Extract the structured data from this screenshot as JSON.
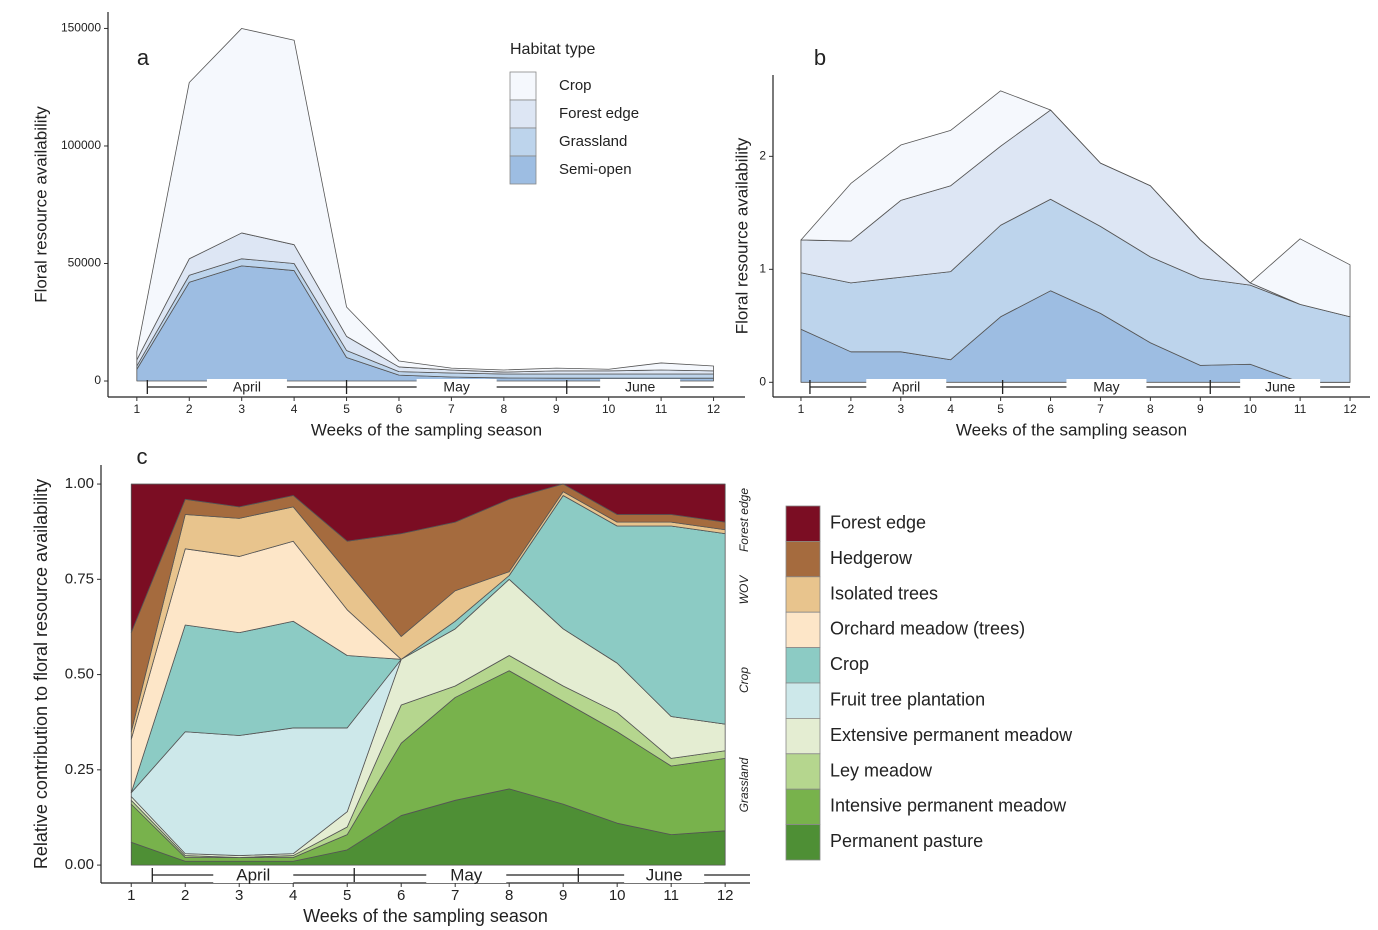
{
  "chart_data": [
    {
      "type": "area",
      "panel_label": "a",
      "x_label": "Weeks of the sampling season",
      "y_label": "Floral resource availability",
      "legend_title": "Habitat type",
      "x": [
        1,
        2,
        3,
        4,
        5,
        6,
        7,
        8,
        9,
        10,
        11,
        12
      ],
      "xlim": [
        0.45,
        12.6
      ],
      "xticks": [
        1,
        2,
        3,
        4,
        5,
        6,
        7,
        8,
        9,
        10,
        11,
        12
      ],
      "ylim": [
        -6800,
        157000
      ],
      "yticks": [
        0,
        50000,
        100000,
        150000
      ],
      "series": [
        {
          "name": "Crop",
          "color": "#f5f8fd",
          "values": [
            3400,
            75000,
            87000,
            87000,
            12500,
            2500,
            800,
            900,
            1200,
            700,
            3000,
            2100
          ]
        },
        {
          "name": "Forest edge",
          "color": "#dde6f4",
          "values": [
            2600,
            7000,
            11000,
            8000,
            6000,
            2000,
            1300,
            800,
            1300,
            1300,
            1700,
            1300
          ]
        },
        {
          "name": "Grassland",
          "color": "#bdd4ec",
          "values": [
            1400,
            3000,
            3000,
            3000,
            3000,
            1500,
            1700,
            1700,
            1800,
            1800,
            1800,
            1800
          ]
        },
        {
          "name": "Semi-open",
          "color": "#9dbde2",
          "values": [
            5000,
            42000,
            49000,
            47000,
            10000,
            2500,
            1700,
            1300,
            1200,
            1200,
            1200,
            1200
          ]
        }
      ],
      "months": [
        {
          "label": "April",
          "start": 1.2,
          "end": 5.0
        },
        {
          "label": "May",
          "start": 5.0,
          "end": 9.2
        },
        {
          "label": "June",
          "start": 9.2,
          "end": 12
        }
      ]
    },
    {
      "type": "area",
      "panel_label": "b",
      "x_label": "Weeks of the sampling season",
      "y_label": "Floral resource availability",
      "x": [
        1,
        2,
        3,
        4,
        5,
        6,
        7,
        8,
        9,
        10,
        11,
        12
      ],
      "xlim": [
        0.44,
        12.4
      ],
      "xticks": [
        1,
        2,
        3,
        4,
        5,
        6,
        7,
        8,
        9,
        10,
        11,
        12
      ],
      "ylim": [
        -0.13,
        2.72
      ],
      "yticks": [
        0,
        1,
        2
      ],
      "series": [
        {
          "name": "Crop",
          "color": "#f5f8fd",
          "values": [
            0,
            0.51,
            0.49,
            0.49,
            0.49,
            0,
            0,
            0,
            0,
            0,
            0.58,
            0.46
          ]
        },
        {
          "name": "Forest edge",
          "color": "#dde6f4",
          "values": [
            0.29,
            0.37,
            0.68,
            0.76,
            0.7,
            0.79,
            0.56,
            0.63,
            0.34,
            0.02,
            0,
            0
          ]
        },
        {
          "name": "Grassland",
          "color": "#bdd4ec",
          "values": [
            0.5,
            0.61,
            0.66,
            0.78,
            0.81,
            0.81,
            0.77,
            0.76,
            0.77,
            0.7,
            0.69,
            0.58
          ]
        },
        {
          "name": "Semi-open",
          "color": "#9dbde2",
          "values": [
            0.47,
            0.27,
            0.27,
            0.2,
            0.58,
            0.81,
            0.61,
            0.35,
            0.15,
            0.16,
            0,
            0
          ]
        }
      ],
      "months": [
        {
          "label": "April",
          "start": 1.18,
          "end": 5.04
        },
        {
          "label": "May",
          "start": 5.04,
          "end": 9.2
        },
        {
          "label": "June",
          "start": 9.2,
          "end": 12
        }
      ]
    },
    {
      "type": "area",
      "panel_label": "c",
      "x_label": "Weeks of the sampling season",
      "y_label": "Relative contribution to floral resource  availability",
      "x": [
        1,
        2,
        3,
        4,
        5,
        6,
        7,
        8,
        9,
        10,
        11,
        12
      ],
      "xlim": [
        0.44,
        12.46
      ],
      "xticks": [
        1,
        2,
        3,
        4,
        5,
        6,
        7,
        8,
        9,
        10,
        11,
        12
      ],
      "ylim": [
        -0.047,
        1.05
      ],
      "yticks": [
        {
          "value": 0,
          "label": "0.00"
        },
        {
          "value": 0.25,
          "label": "0.25"
        },
        {
          "value": 0.5,
          "label": "0.50"
        },
        {
          "value": 0.75,
          "label": "0.75"
        },
        {
          "value": 1,
          "label": "1.00"
        }
      ],
      "series": [
        {
          "name": "Forest edge",
          "color": "#7b0d23",
          "values": [
            0.39,
            0.04,
            0.06,
            0.03,
            0.15,
            0.13,
            0.1,
            0.04,
            0,
            0.08,
            0.08,
            0.1
          ]
        },
        {
          "name": "Hedgerow",
          "color": "#a56b3e",
          "values": [
            0.26,
            0.04,
            0.03,
            0.03,
            0.08,
            0.27,
            0.18,
            0.19,
            0.02,
            0.02,
            0.02,
            0.02
          ]
        },
        {
          "name": "Isolated trees",
          "color": "#e8c48d",
          "values": [
            0.02,
            0.09,
            0.1,
            0.09,
            0.1,
            0.06,
            0.08,
            0.01,
            0.01,
            0.01,
            0.01,
            0.01
          ]
        },
        {
          "name": "Orchard meadow (trees)",
          "color": "#fde6c8",
          "values": [
            0.14,
            0.2,
            0.2,
            0.21,
            0.12,
            0,
            0,
            0,
            0,
            0,
            0,
            0
          ]
        },
        {
          "name": "Crop",
          "color": "#8ccbc4",
          "values": [
            0,
            0.28,
            0.27,
            0.28,
            0.19,
            0,
            0.02,
            0.01,
            0.35,
            0.36,
            0.5,
            0.5
          ]
        },
        {
          "name": "Fruit tree plantation",
          "color": "#cde8ea",
          "values": [
            0.01,
            0.32,
            0.315,
            0.33,
            0.22,
            0,
            0,
            0,
            0,
            0,
            0,
            0
          ]
        },
        {
          "name": "Extensive permanent meadow",
          "color": "#e4edd2",
          "values": [
            0.01,
            0.005,
            0.005,
            0.005,
            0.04,
            0.12,
            0.15,
            0.2,
            0.15,
            0.13,
            0.11,
            0.07
          ]
        },
        {
          "name": "Ley meadow",
          "color": "#b5d68e",
          "values": [
            0.01,
            0.005,
            0,
            0.005,
            0.02,
            0.1,
            0.03,
            0.04,
            0.04,
            0.05,
            0.02,
            0.02
          ]
        },
        {
          "name": "Intensive permanent meadow",
          "color": "#78b24c",
          "values": [
            0.1,
            0.01,
            0.01,
            0.01,
            0.04,
            0.19,
            0.27,
            0.31,
            0.27,
            0.24,
            0.18,
            0.19
          ]
        },
        {
          "name": "Permanent pasture",
          "color": "#4e8f35",
          "values": [
            0.06,
            0.01,
            0.01,
            0.01,
            0.04,
            0.13,
            0.17,
            0.2,
            0.16,
            0.11,
            0.08,
            0.09
          ]
        }
      ],
      "side_labels": [
        "Forest edge",
        "WOV",
        "Crop",
        "Grassland"
      ],
      "months": [
        {
          "label": "April",
          "start": 1.39,
          "end": 5.13
        },
        {
          "label": "May",
          "start": 5.13,
          "end": 9.28
        },
        {
          "label": "June",
          "start": 9.28,
          "end": 12.46
        }
      ]
    }
  ]
}
